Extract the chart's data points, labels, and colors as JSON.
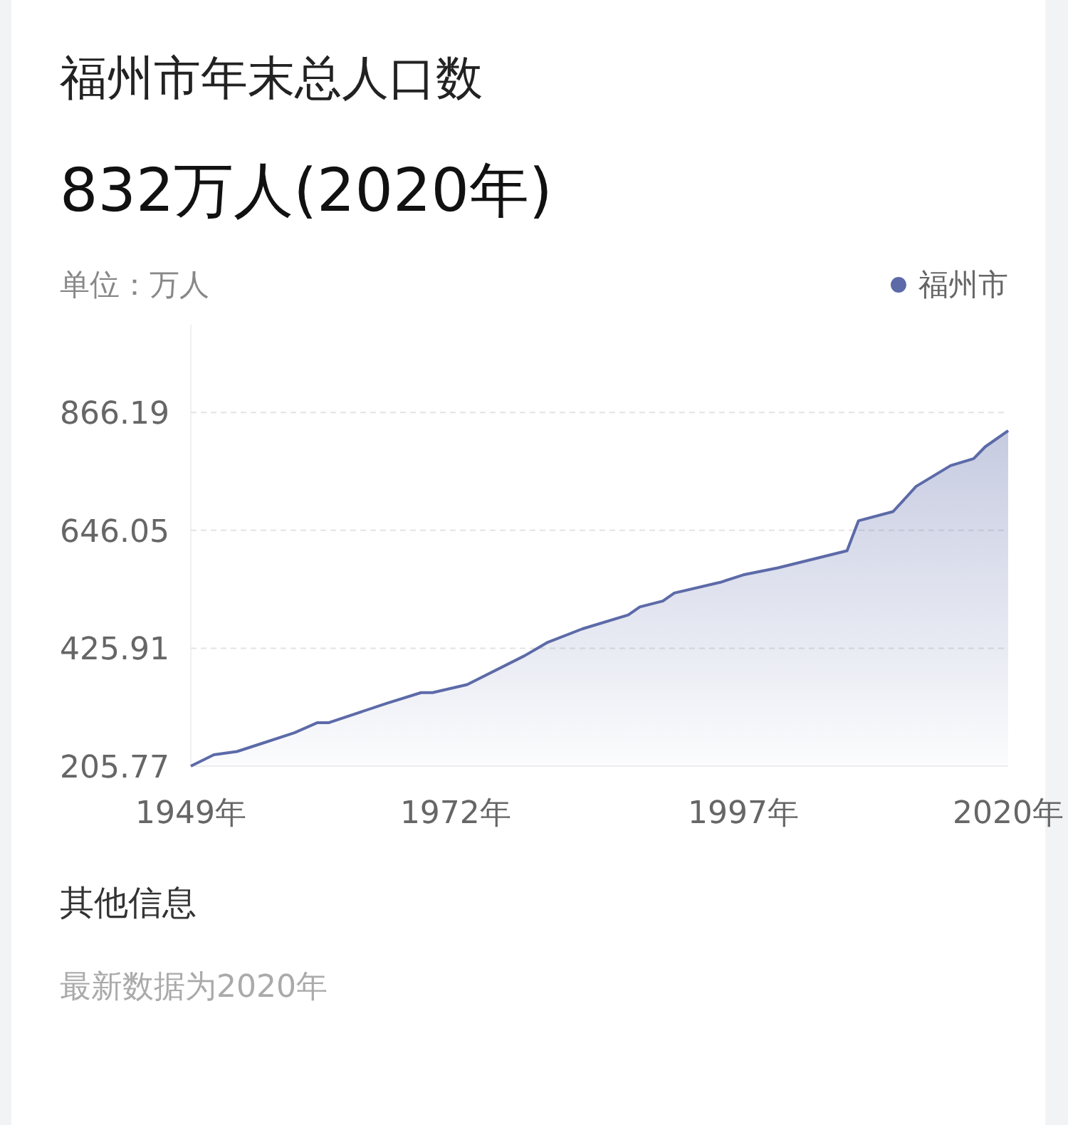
{
  "chart_data": {
    "type": "area",
    "title": "福州市年末总人口数",
    "subtitle": "832万人(2020年)",
    "ylabel": "单位：万人",
    "annotations": [
      "其他信息",
      "最新数据为2020年"
    ],
    "x": [
      1949,
      1951,
      1953,
      1955,
      1958,
      1960,
      1961,
      1966,
      1969,
      1970,
      1973,
      1978,
      1980,
      1983,
      1987,
      1988,
      1990,
      1991,
      1995,
      1997,
      2000,
      2003,
      2006,
      2007,
      2010,
      2012,
      2015,
      2017,
      2018,
      2020
    ],
    "series": [
      {
        "name": "福州市",
        "color": "#5c6aa8",
        "values": [
          205.77,
          227,
          233,
          247,
          268,
          287,
          287,
          323,
          343,
          343,
          358,
          412,
          437,
          462,
          488,
          503,
          514,
          529,
          549,
          563,
          576,
          592,
          608,
          664,
          681,
          728,
          767,
          780,
          802,
          832
        ]
      }
    ],
    "xlim": [
      1949,
      2020
    ],
    "ylim": [
      205.77,
      1030
    ],
    "xticks": [
      {
        "value": 1949,
        "label": "1949年"
      },
      {
        "value": 1972,
        "label": "1972年"
      },
      {
        "value": 1997,
        "label": "1997年"
      },
      {
        "value": 2020,
        "label": "2020年"
      }
    ],
    "yticks": [
      205.77,
      425.91,
      646.05,
      866.19
    ],
    "grid": "y",
    "legend": "top right"
  }
}
